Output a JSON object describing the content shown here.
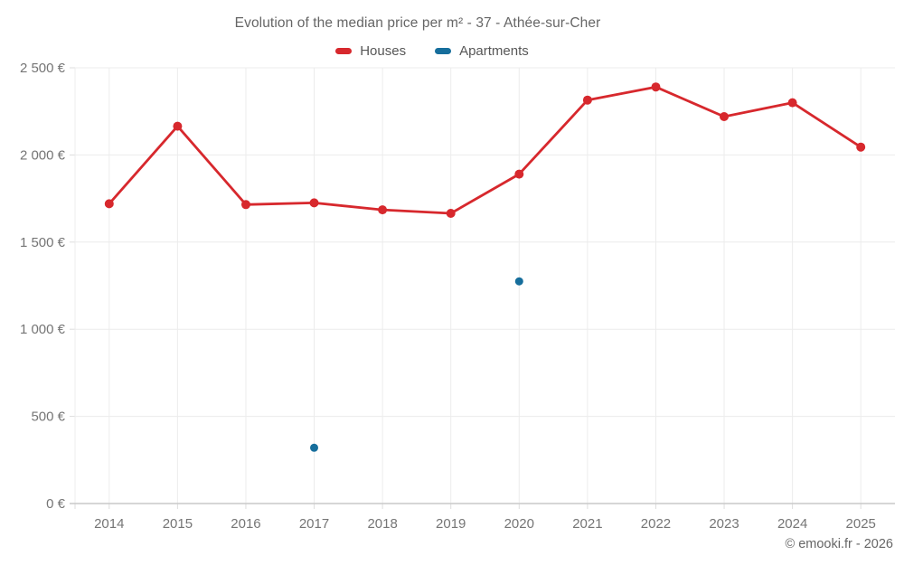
{
  "page": {
    "footer": "© emooki.fr - 2026"
  },
  "colors": {
    "background": "#ffffff",
    "title_text": "#666666",
    "legend_text": "#575757",
    "axis_text": "#757575",
    "grid": "#ececec",
    "tick": "#dddddd",
    "axis_line": "#c9c9c9",
    "houses": "#d7282d",
    "apartments": "#166e9c"
  },
  "chart_data": {
    "type": "line",
    "title": "Evolution of the median price per m² - 37 - Athée-sur-Cher",
    "xlabel": "",
    "ylabel": "",
    "categories": [
      "2014",
      "2015",
      "2016",
      "2017",
      "2018",
      "2019",
      "2020",
      "2021",
      "2022",
      "2023",
      "2024",
      "2025"
    ],
    "series": [
      {
        "name": "Houses",
        "color": "#d7282d",
        "show_line": true,
        "values": [
          1720,
          2165,
          1715,
          1725,
          1685,
          1665,
          1890,
          2315,
          2390,
          2220,
          2300,
          2045
        ]
      },
      {
        "name": "Apartments",
        "color": "#166e9c",
        "show_line": false,
        "values": [
          null,
          null,
          null,
          320,
          null,
          null,
          1275,
          null,
          null,
          null,
          null,
          null
        ]
      }
    ],
    "ylim": [
      0,
      2500
    ],
    "ytick_step": 500,
    "ytick_labels": [
      "0 €",
      "500 €",
      "1 000 €",
      "1 500 €",
      "2 000 €",
      "2 500 €"
    ],
    "grid": true,
    "legend_position": "top",
    "annotations": []
  }
}
